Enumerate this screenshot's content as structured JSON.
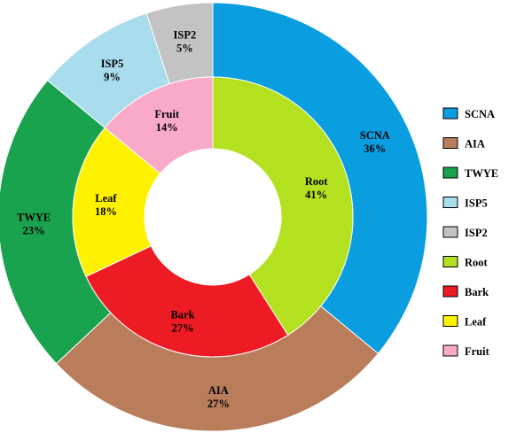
{
  "chart_data": {
    "type": "pie",
    "variant": "nested-donut",
    "title": "",
    "legend_placement": "right",
    "rings": [
      {
        "ring": "outer",
        "slices": [
          {
            "name": "SCNA",
            "value": 36,
            "label": "36%",
            "color": "#0a9ee0"
          },
          {
            "name": "AIA",
            "value": 27,
            "label": "27%",
            "color": "#b97d5b"
          },
          {
            "name": "TWYE",
            "value": 23,
            "label": "23%",
            "color": "#1aa34f"
          },
          {
            "name": "ISP5",
            "value": 9,
            "label": "9%",
            "color": "#a9dced"
          },
          {
            "name": "ISP2",
            "value": 5,
            "label": "5%",
            "color": "#c3c3c3"
          }
        ]
      },
      {
        "ring": "inner",
        "slices": [
          {
            "name": "Root",
            "value": 41,
            "label": "41%",
            "color": "#b3e11f"
          },
          {
            "name": "Bark",
            "value": 27,
            "label": "27%",
            "color": "#ed1c24"
          },
          {
            "name": "Leaf",
            "value": 18,
            "label": "18%",
            "color": "#fff200"
          },
          {
            "name": "Fruit",
            "value": 14,
            "label": "14%",
            "color": "#f9aac8"
          }
        ]
      }
    ],
    "legend": [
      {
        "name": "SCNA",
        "color": "#0a9ee0"
      },
      {
        "name": "AIA",
        "color": "#b97d5b"
      },
      {
        "name": "TWYE",
        "color": "#1aa34f"
      },
      {
        "name": "ISP5",
        "color": "#a9dced"
      },
      {
        "name": "ISP2",
        "color": "#c3c3c3"
      },
      {
        "name": "Root",
        "color": "#b3e11f"
      },
      {
        "name": "Bark",
        "color": "#ed1c24"
      },
      {
        "name": "Leaf",
        "color": "#fff200"
      },
      {
        "name": "Fruit",
        "color": "#f9aac8"
      }
    ]
  }
}
